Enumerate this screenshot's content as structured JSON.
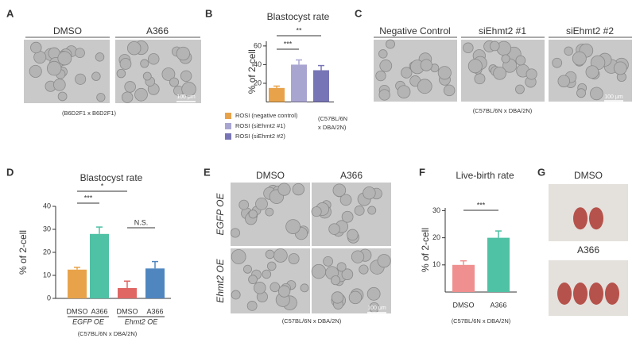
{
  "chart_data": [
    {
      "type": "bar",
      "title": "Blastocyst rate",
      "y_label": "% of 2-cell",
      "categories": [
        "ROSI (negative control)",
        "ROSI (siEhmt2 #1)",
        "ROSI (siEhmt2 #2)"
      ],
      "values": [
        15,
        40,
        34
      ],
      "errors": [
        2,
        5,
        5
      ],
      "colors": [
        "#e8a34a",
        "#a9a5d1",
        "#7875b6"
      ],
      "ylim": [
        0,
        65
      ],
      "yticks": [
        20,
        40,
        60
      ],
      "annotations": [
        "***",
        "**"
      ],
      "note": [
        "(C57BL/6N",
        "x DBA/2N)"
      ],
      "legend": true
    },
    {
      "type": "bar",
      "title": "Blastocyst rate",
      "y_label": "% of 2-cell",
      "categories": [
        "DMSO",
        "A366",
        "DMSO",
        "A366"
      ],
      "groups": [
        "EGFP OE",
        "Ehmt2 OE"
      ],
      "values": [
        12.5,
        28,
        4.5,
        13
      ],
      "errors": [
        1,
        3,
        3,
        3
      ],
      "colors": [
        "#e8a34a",
        "#4fc1a4",
        "#e06663",
        "#4f86c0"
      ],
      "ylim": [
        0,
        40
      ],
      "yticks": [
        0,
        10,
        20,
        30,
        40
      ],
      "annotations": [
        "***",
        "*",
        "N.S."
      ],
      "note": [
        "(C57BL/6N x DBA/2N)"
      ],
      "legend": false
    },
    {
      "type": "bar",
      "title": "Live-birth rate",
      "y_label": "% of 2-cell",
      "categories": [
        "DMSO",
        "A366"
      ],
      "values": [
        10,
        20
      ],
      "errors": [
        1.5,
        2.5
      ],
      "colors": [
        "#ef8f8f",
        "#4fc1a4"
      ],
      "ylim": [
        0,
        31
      ],
      "yticks": [
        10,
        20,
        30
      ],
      "annotations": [
        "***"
      ],
      "note": [
        "(C57BL/6N x DBA/2N)"
      ],
      "legend": false
    }
  ],
  "figure": {
    "letters": [
      "A",
      "B",
      "C",
      "D",
      "E",
      "F",
      "G"
    ],
    "panel_a": {
      "labels": [
        "DMSO",
        "A366"
      ],
      "scale": "100 μm",
      "note": "(B6D2F1 x B6D2F1)"
    },
    "panel_c": {
      "labels": [
        "Negative Control",
        "siEhmt2 #1",
        "siEhmt2 #2"
      ],
      "scale": "100 μm",
      "note": "(C57BL/6N x DBA/2N)"
    },
    "panel_e": {
      "labels": [
        "DMSO",
        "A366"
      ],
      "rows": [
        "EGFP OE",
        "Ehmt2 OE"
      ],
      "scale": "100 μm",
      "note": "(C57BL/6N x DBA/2N)"
    },
    "panel_g": {
      "labels": [
        "DMSO",
        "A366"
      ]
    }
  }
}
